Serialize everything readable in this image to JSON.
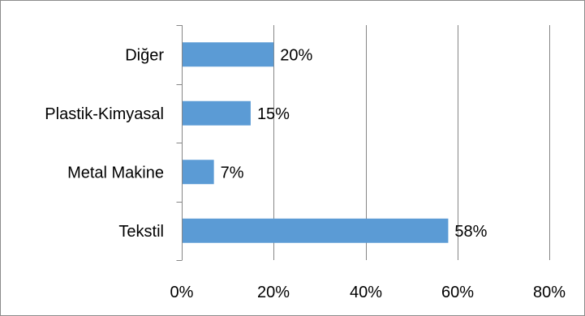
{
  "chart_data": {
    "type": "bar",
    "orientation": "horizontal",
    "title": "",
    "xlabel": "",
    "ylabel": "",
    "categories": [
      "Tekstil",
      "Metal Makine",
      "Plastik-Kimyasal",
      "Diğer"
    ],
    "values": [
      58,
      7,
      15,
      20
    ],
    "data_labels": [
      "58%",
      "7%",
      "15%",
      "20%"
    ],
    "xlim": [
      0,
      80
    ],
    "x_ticks": [
      0,
      20,
      40,
      60,
      80
    ],
    "x_tick_labels": [
      "0%",
      "20%",
      "40%",
      "60%",
      "80%"
    ],
    "grid": true,
    "legend": "none",
    "colors": {
      "bar": "#5b9bd5"
    }
  }
}
